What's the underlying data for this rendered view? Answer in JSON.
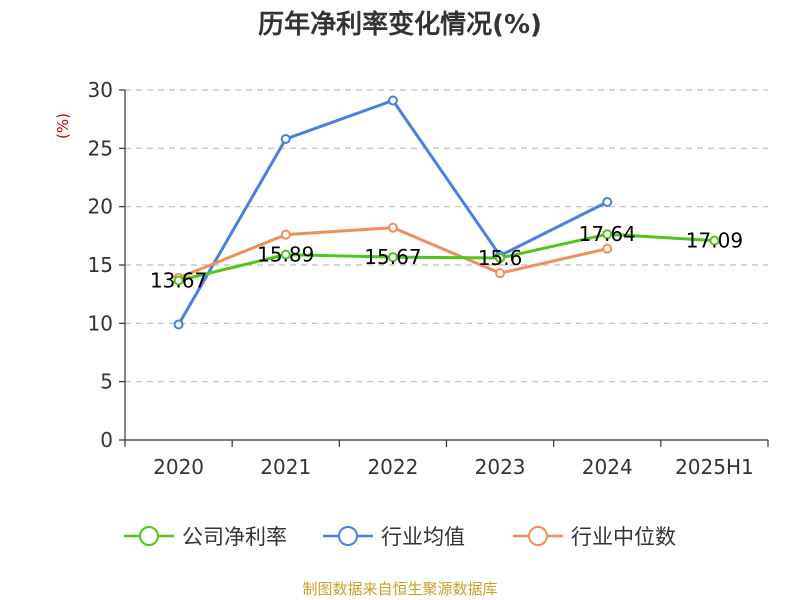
{
  "chart_data": {
    "type": "line",
    "title": "历年净利率变化情况(%)",
    "ylabel": "(%)",
    "categories": [
      "2020",
      "2021",
      "2022",
      "2023",
      "2024",
      "2025H1"
    ],
    "ylim": [
      0,
      30
    ],
    "yticks": [
      "0",
      "5",
      "10",
      "15",
      "20",
      "25",
      "30"
    ],
    "grid": true,
    "legend_position": "bottom",
    "series": [
      {
        "name": "公司净利率",
        "color": "#52c41a",
        "values": [
          13.67,
          15.89,
          15.67,
          15.6,
          17.64,
          17.09
        ],
        "labels": [
          "13.67",
          "15.89",
          "15.67",
          "15.6",
          "17.64",
          "17.09"
        ]
      },
      {
        "name": "行业均值",
        "color": "#4a7fdc",
        "values": [
          9.9,
          25.8,
          29.1,
          15.8,
          20.4,
          null
        ]
      },
      {
        "name": "行业中位数",
        "color": "#f28e5a",
        "values": [
          13.9,
          17.6,
          18.2,
          14.3,
          16.4,
          null
        ]
      }
    ]
  },
  "footer": {
    "source": "制图数据来自恒生聚源数据库"
  }
}
